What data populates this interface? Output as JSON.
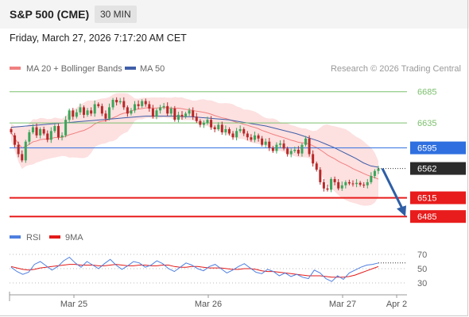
{
  "header": {
    "title": "S&P 500 (CME)",
    "timeframe": "30 MIN",
    "timestamp": "Friday, March 27, 2026 7:17:20 AM CET"
  },
  "legend": {
    "ma20_label": "MA 20 + Bollinger Bands",
    "ma50_label": "MA 50",
    "credit": "Research © 2026 Trading Central",
    "rsi_label": "RSI",
    "rsi_ma_label": "9MA"
  },
  "colors": {
    "ma20": "#f08080",
    "bollinger_fill": "#fde0e0",
    "ma50": "#3f5ea8",
    "candle_up": "#3aa65a",
    "candle_down": "#b72828",
    "level_green": "#7cc06e",
    "level_blue": "#2f6fe0",
    "level_red": "#e81c1c",
    "current_bg": "#2b2b2b",
    "rsi": "#4f7fe0",
    "rsi_ma": "#e31a1a",
    "arrow": "#2f5ea6"
  },
  "chart_data": {
    "type": "candlestick",
    "x_labels": [
      "Mar 25",
      "Mar 26",
      "Mar 27",
      "Apr 2"
    ],
    "ylim": [
      6470,
      6705
    ],
    "levels": [
      {
        "value": 6685,
        "label": "6685",
        "style": "resistance-green"
      },
      {
        "value": 6635,
        "label": "6635",
        "style": "resistance-green"
      },
      {
        "value": 6595,
        "label": "6595",
        "style": "pivot-blue"
      },
      {
        "value": 6515,
        "label": "6515",
        "style": "support-red"
      },
      {
        "value": 6485,
        "label": "6485",
        "style": "support-red"
      }
    ],
    "current_price": {
      "value": 6562,
      "label": "6562"
    },
    "forecast_arrow": {
      "from": 6562,
      "to": 6485
    },
    "price_close": [
      6620,
      6600,
      6585,
      6575,
      6605,
      6620,
      6628,
      6615,
      6625,
      6618,
      6608,
      6622,
      6630,
      6612,
      6615,
      6640,
      6655,
      6645,
      6652,
      6660,
      6648,
      6655,
      6650,
      6665,
      6662,
      6650,
      6642,
      6660,
      6672,
      6668,
      6670,
      6660,
      6650,
      6655,
      6665,
      6662,
      6670,
      6665,
      6658,
      6645,
      6655,
      6660,
      6662,
      6650,
      6658,
      6640,
      6648,
      6645,
      6650,
      6655,
      6645,
      6638,
      6632,
      6635,
      6640,
      6628,
      6625,
      6632,
      6620,
      6625,
      6618,
      6612,
      6622,
      6625,
      6618,
      6612,
      6608,
      6615,
      6610,
      6600,
      6605,
      6595,
      6590,
      6600,
      6602,
      6594,
      6585,
      6590,
      6592,
      6586,
      6600,
      6610,
      6585,
      6570,
      6560,
      6540,
      6530,
      6528,
      6545,
      6540,
      6530,
      6535,
      6540,
      6538,
      6537,
      6539,
      6536,
      6535,
      6540,
      6550,
      6558,
      6562
    ],
    "price_open": [
      6625,
      6615,
      6600,
      6585,
      6575,
      6605,
      6620,
      6628,
      6615,
      6625,
      6618,
      6608,
      6622,
      6630,
      6612,
      6615,
      6640,
      6655,
      6645,
      6652,
      6660,
      6648,
      6655,
      6650,
      6665,
      6662,
      6650,
      6642,
      6660,
      6672,
      6668,
      6670,
      6660,
      6650,
      6655,
      6665,
      6662,
      6670,
      6665,
      6658,
      6645,
      6655,
      6660,
      6662,
      6650,
      6658,
      6640,
      6648,
      6645,
      6650,
      6655,
      6645,
      6638,
      6632,
      6635,
      6640,
      6628,
      6625,
      6632,
      6620,
      6625,
      6618,
      6612,
      6622,
      6625,
      6618,
      6612,
      6608,
      6615,
      6610,
      6600,
      6605,
      6595,
      6590,
      6600,
      6602,
      6594,
      6585,
      6590,
      6592,
      6586,
      6600,
      6610,
      6585,
      6570,
      6560,
      6540,
      6530,
      6528,
      6545,
      6540,
      6530,
      6535,
      6540,
      6538,
      6537,
      6539,
      6536,
      6535,
      6540,
      6550,
      6558
    ],
    "ma50": [
      6628,
      6629,
      6630,
      6631,
      6632,
      6633,
      6634,
      6635,
      6636,
      6637,
      6638,
      6639,
      6640,
      6641,
      6642,
      6643,
      6644,
      6645,
      6646,
      6646,
      6646,
      6646,
      6646,
      6645,
      6645,
      6644,
      6643,
      6642,
      6641,
      6640,
      6638,
      6636,
      6634,
      6632,
      6630,
      6627,
      6624,
      6621,
      6618,
      6614,
      6610,
      6606,
      6601,
      6596,
      6590,
      6584,
      6578,
      6571,
      6566,
      6564
    ],
    "rsi_axis": {
      "ticks": [
        70,
        50,
        30
      ],
      "ylim": [
        20,
        80
      ]
    },
    "rsi": [
      52,
      46,
      42,
      45,
      56,
      60,
      54,
      48,
      53,
      61,
      66,
      58,
      52,
      60,
      55,
      50,
      57,
      63,
      55,
      49,
      54,
      60,
      58,
      52,
      55,
      61,
      57,
      50,
      46,
      52,
      58,
      55,
      50,
      47,
      53,
      56,
      50,
      44,
      48,
      53,
      57,
      51,
      45,
      43,
      49,
      46,
      40,
      44,
      39,
      42,
      38,
      36,
      48,
      44,
      36,
      32,
      40,
      35,
      44,
      48,
      52,
      55,
      56,
      58
    ],
    "rsi_ma": [
      53,
      51,
      49,
      48,
      49,
      51,
      52,
      53,
      54,
      55,
      56,
      56,
      55,
      55,
      55,
      54,
      54,
      55,
      56,
      55,
      54,
      54,
      55,
      55,
      54,
      54,
      55,
      55,
      53,
      52,
      52,
      53,
      53,
      52,
      51,
      51,
      51,
      50,
      49,
      49,
      50,
      50,
      49,
      47,
      46,
      46,
      45,
      44,
      43,
      42,
      41,
      40,
      40,
      40,
      39,
      38,
      38,
      38,
      39,
      41,
      44,
      47,
      50,
      53
    ]
  }
}
